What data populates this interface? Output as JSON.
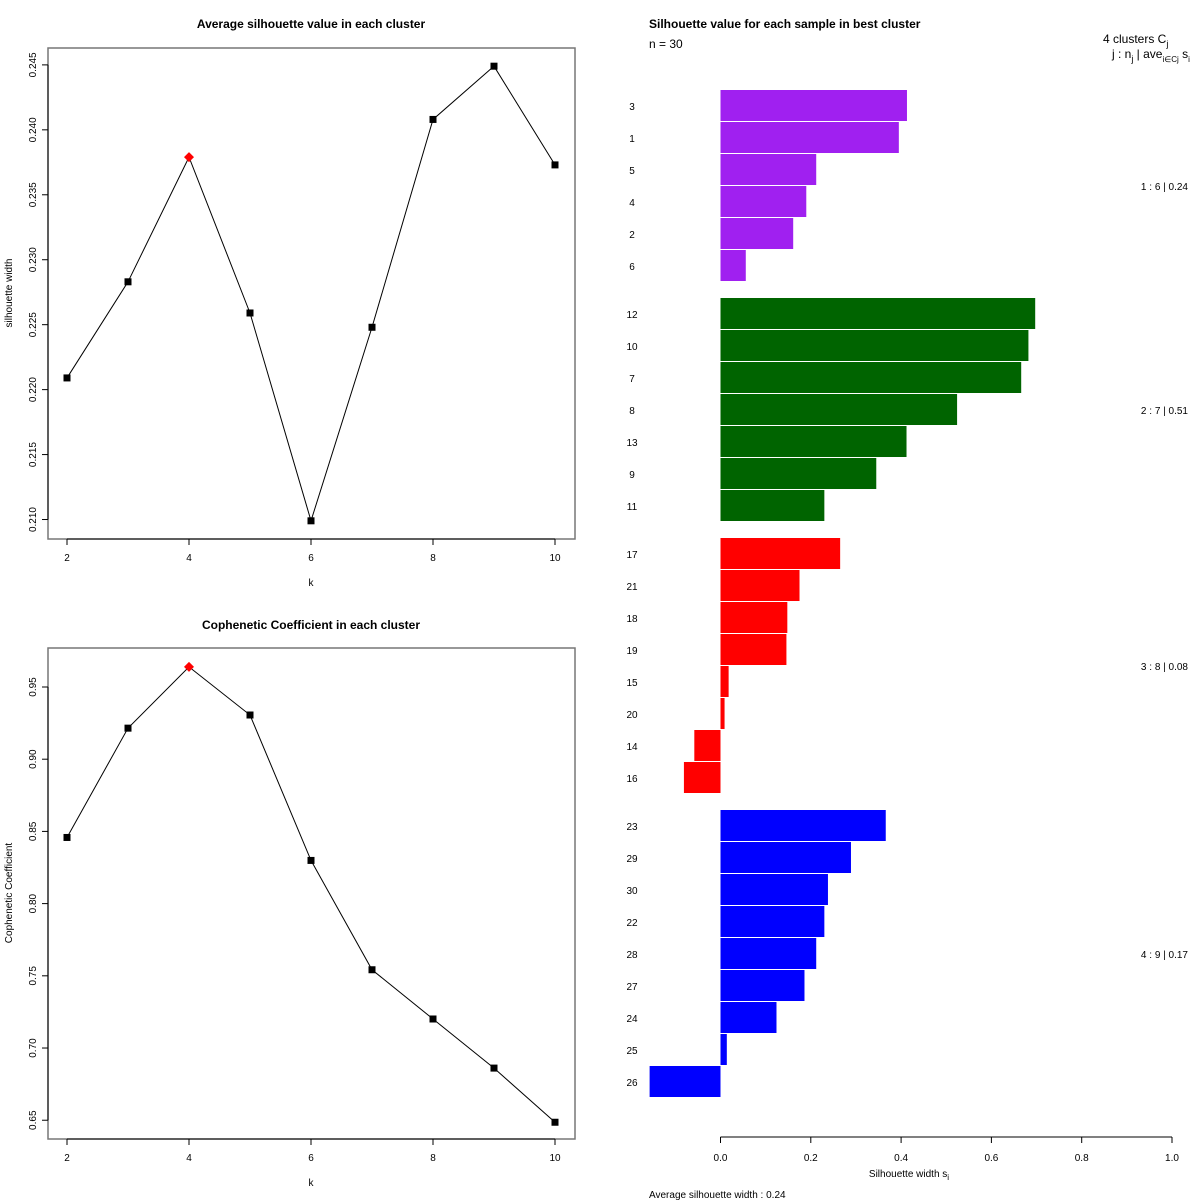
{
  "chart_data": [
    {
      "type": "line",
      "title": "Average silhouette value in each cluster",
      "xlabel": "k",
      "ylabel": "silhouette width",
      "x": [
        2,
        3,
        4,
        5,
        6,
        7,
        8,
        9,
        10
      ],
      "values": [
        0.2209,
        0.2283,
        0.2379,
        0.2259,
        0.2099,
        0.2248,
        0.2408,
        0.2449,
        0.2373
      ],
      "highlight_x": 4,
      "highlight_color": "#ff0000",
      "xticks": [
        "2",
        "4",
        "6",
        "8",
        "10"
      ],
      "yticks": [
        "0.210",
        "0.215",
        "0.220",
        "0.225",
        "0.230",
        "0.235",
        "0.240",
        "0.245"
      ],
      "xlim": [
        2,
        10
      ],
      "ylim": [
        0.2085,
        0.2463
      ],
      "grid": false
    },
    {
      "type": "line",
      "title": "Cophenetic Coefficient in each cluster",
      "xlabel": "k",
      "ylabel": "Cophenetic Coefficient",
      "x": [
        2,
        3,
        4,
        5,
        6,
        7,
        8,
        9,
        10
      ],
      "values": [
        0.8458,
        0.9215,
        0.9639,
        0.9306,
        0.8299,
        0.7542,
        0.7201,
        0.6861,
        0.6486
      ],
      "highlight_x": 4,
      "highlight_color": "#ff0000",
      "xticks": [
        "2",
        "4",
        "6",
        "8",
        "10"
      ],
      "yticks": [
        "0.65",
        "0.70",
        "0.75",
        "0.80",
        "0.85",
        "0.90",
        "0.95"
      ],
      "xlim": [
        2,
        10
      ],
      "ylim": [
        0.637,
        0.977
      ],
      "grid": false
    },
    {
      "type": "bar",
      "orientation": "horizontal",
      "title": "Silhouette value for each sample in best cluster",
      "subtitle": "n = 30",
      "xlabel": "Silhouette width s",
      "xlabel_sub": "i",
      "xticks": [
        "0.0",
        "0.2",
        "0.4",
        "0.6",
        "0.8",
        "1.0"
      ],
      "xlim": [
        0,
        1
      ],
      "footer": "Average silhouette width :  0.24",
      "legend_header_line1": "4  clusters  C",
      "legend_header_line1_sub": "j",
      "legend_header_line2": "j :  n",
      "legend_header_line2_sub": "j",
      "legend_header_line2_rest": " | ave",
      "legend_header_line2_sub2": "i∈Cj",
      "legend_header_line2_end": " s",
      "legend_header_line2_sub3": "i",
      "clusters": [
        {
          "label": "1 :   6  |  0.24",
          "color": "#a020f0",
          "samples": [
            "3",
            "1",
            "5",
            "4",
            "2",
            "6"
          ],
          "values": [
            0.413,
            0.395,
            0.212,
            0.19,
            0.161,
            0.056
          ]
        },
        {
          "label": "2 :   7  |  0.51",
          "color": "#006400",
          "samples": [
            "12",
            "10",
            "7",
            "8",
            "13",
            "9",
            "11"
          ],
          "values": [
            0.697,
            0.682,
            0.666,
            0.524,
            0.412,
            0.345,
            0.23
          ]
        },
        {
          "label": "3 :   8  |  0.08",
          "color": "#ff0000",
          "samples": [
            "17",
            "21",
            "18",
            "19",
            "15",
            "20",
            "14",
            "16"
          ],
          "values": [
            0.265,
            0.175,
            0.148,
            0.146,
            0.018,
            0.009,
            -0.058,
            -0.081
          ]
        },
        {
          "label": "4 :   9  |  0.17",
          "color": "#0000ff",
          "samples": [
            "23",
            "29",
            "30",
            "22",
            "28",
            "27",
            "24",
            "25",
            "26"
          ],
          "values": [
            0.366,
            0.289,
            0.238,
            0.23,
            0.212,
            0.186,
            0.124,
            0.014,
            -0.157
          ]
        }
      ]
    }
  ]
}
